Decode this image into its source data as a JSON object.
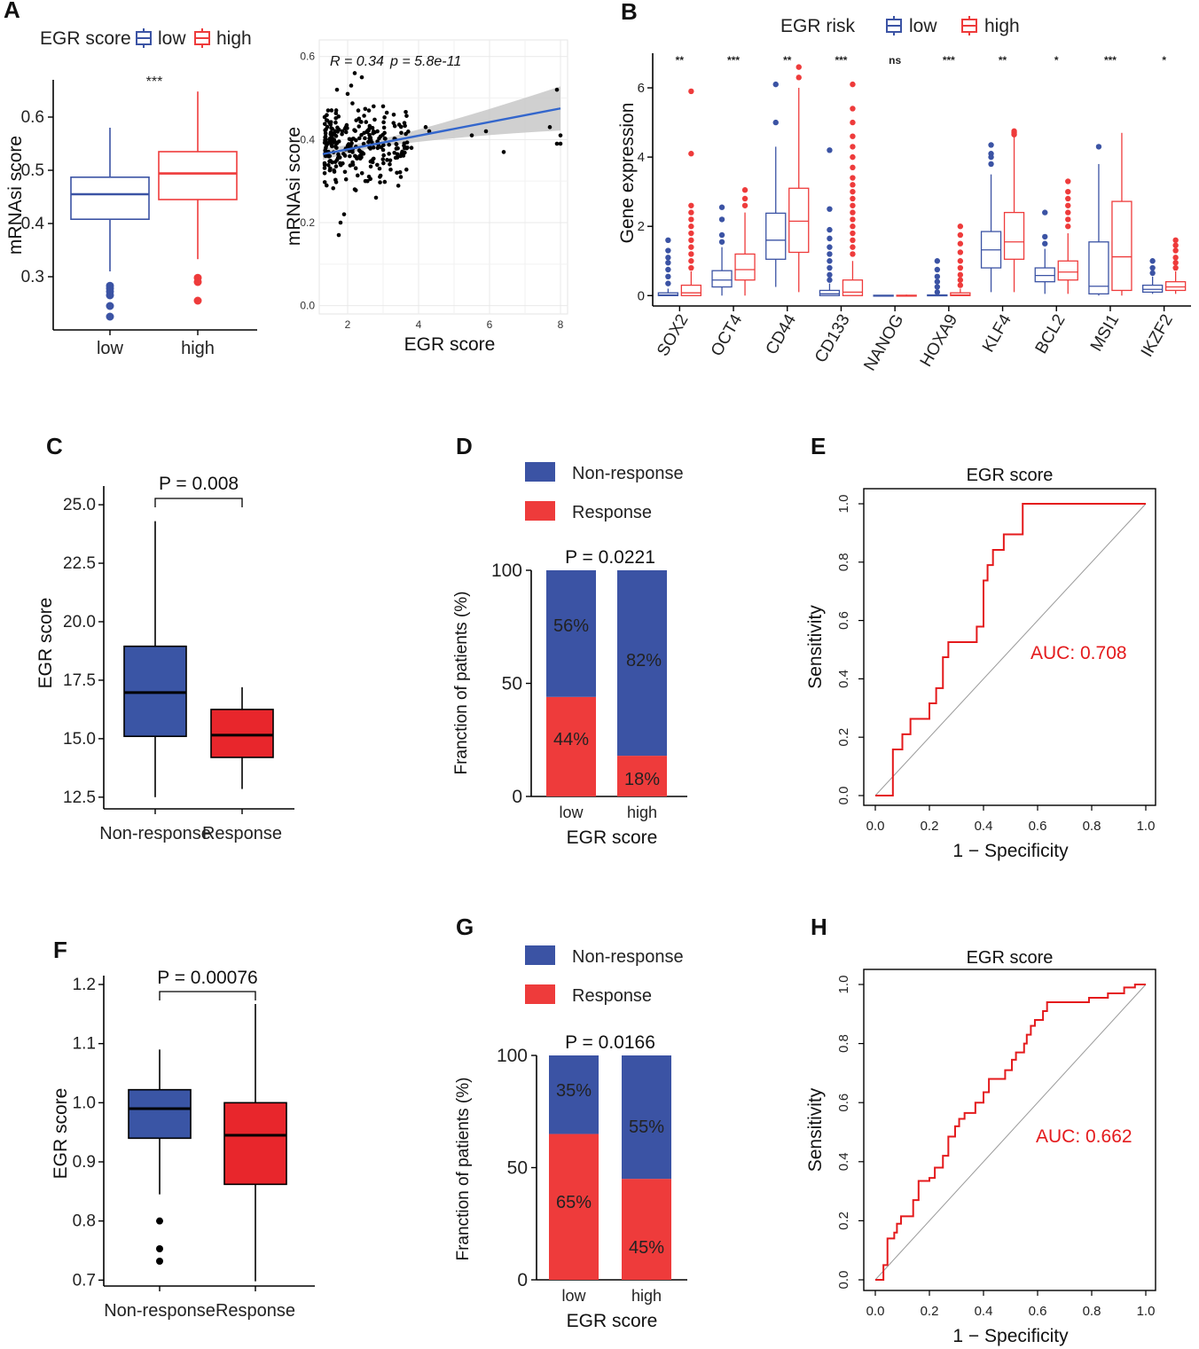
{
  "panel_labels": [
    "A",
    "B",
    "C",
    "D",
    "E",
    "F",
    "G",
    "H"
  ],
  "colors": {
    "blue": "#3b53a4",
    "red": "#ee3b3b",
    "box_blue": "#3a55a5",
    "box_red": "#e8262c",
    "dark_red": "#e41a1c"
  },
  "chart_data": [
    {
      "id": "A1",
      "type": "boxplot",
      "legend_title": "EGR score",
      "legend": [
        "low",
        "high"
      ],
      "categories": [
        "low",
        "high"
      ],
      "ylabel": "mRNAsi score",
      "xlabel": "",
      "ylim": [
        0.2,
        0.67
      ],
      "yticks": [
        0.3,
        0.4,
        0.5,
        0.6
      ],
      "significance": "***",
      "boxes": [
        {
          "name": "low",
          "whisker_low": 0.31,
          "q1": 0.408,
          "median": 0.455,
          "q3": 0.487,
          "whisker_high": 0.58,
          "outliers": [
            0.283,
            0.278,
            0.272,
            0.265,
            0.245,
            0.225
          ]
        },
        {
          "name": "high",
          "whisker_low": 0.333,
          "q1": 0.445,
          "median": 0.494,
          "q3": 0.535,
          "whisker_high": 0.648,
          "outliers": [
            0.298,
            0.29,
            0.255
          ]
        }
      ]
    },
    {
      "id": "A2",
      "type": "scatter",
      "annotation_r": "R = 0.34",
      "annotation_p": "p = 5.8e-11",
      "xlabel": "EGR score",
      "ylabel": "mRNAsi score",
      "xlim": [
        1.2,
        8.2
      ],
      "ylim": [
        -0.02,
        0.64
      ],
      "xticks": [
        2,
        4,
        6,
        8
      ],
      "yticks": [
        0.0,
        0.2,
        0.4,
        0.6
      ],
      "trend": {
        "x": [
          1.3,
          8.0
        ],
        "y": [
          0.365,
          0.475
        ]
      },
      "points_outlying": [
        [
          2.2,
          0.56
        ],
        [
          2.4,
          0.55
        ],
        [
          2.1,
          0.53
        ],
        [
          2.0,
          0.51
        ],
        [
          1.7,
          0.52
        ],
        [
          2.6,
          0.47
        ],
        [
          3.0,
          0.48
        ],
        [
          3.3,
          0.46
        ],
        [
          3.6,
          0.44
        ],
        [
          4.3,
          0.42
        ],
        [
          5.9,
          0.42
        ],
        [
          6.4,
          0.37
        ],
        [
          7.9,
          0.52
        ],
        [
          7.7,
          0.43
        ],
        [
          8.0,
          0.41
        ],
        [
          7.9,
          0.39
        ],
        [
          8.0,
          0.39
        ],
        [
          5.5,
          0.41
        ],
        [
          4.2,
          0.43
        ],
        [
          3.8,
          0.38
        ],
        [
          3.2,
          0.35
        ],
        [
          2.9,
          0.33
        ],
        [
          2.5,
          0.3
        ],
        [
          2.2,
          0.28
        ],
        [
          1.9,
          0.22
        ],
        [
          1.8,
          0.2
        ],
        [
          1.75,
          0.17
        ],
        [
          2.8,
          0.26
        ],
        [
          3.5,
          0.31
        ],
        [
          2.3,
          0.47
        ]
      ]
    },
    {
      "id": "B",
      "type": "grouped_boxplot",
      "legend_title": "EGR risk",
      "legend": [
        "low",
        "high"
      ],
      "ylabel": "Gene expression",
      "ylim": [
        -0.3,
        7.0
      ],
      "yticks": [
        0,
        2,
        4,
        6
      ],
      "categories": [
        "SOX2",
        "OCT4",
        "CD44",
        "CD133",
        "NANOG",
        "HOXA9",
        "KLF4",
        "BCL2",
        "MSI1",
        "IKZF2"
      ],
      "significance": [
        "**",
        "***",
        "**",
        "***",
        "ns",
        "***",
        "**",
        "*",
        "***",
        "*"
      ],
      "low": [
        {
          "wl": 0,
          "q1": 0.0,
          "med": 0.02,
          "q3": 0.08,
          "wh": 0.2,
          "out": [
            0.35,
            0.55,
            0.75,
            0.95,
            1.1,
            1.3,
            1.6
          ]
        },
        {
          "wl": 0,
          "q1": 0.25,
          "med": 0.45,
          "q3": 0.72,
          "wh": 1.4,
          "out": [
            1.55,
            1.75,
            2.2,
            2.55
          ]
        },
        {
          "wl": 0.25,
          "q1": 1.05,
          "med": 1.6,
          "q3": 2.38,
          "wh": 4.3,
          "out": [
            5.0,
            6.1
          ]
        },
        {
          "wl": 0,
          "q1": 0.0,
          "med": 0.05,
          "q3": 0.15,
          "wh": 0.35,
          "out": [
            0.45,
            0.6,
            0.8,
            1.0,
            1.2,
            1.4,
            1.65,
            1.9,
            2.5,
            4.2
          ]
        },
        {
          "wl": 0,
          "q1": 0.0,
          "med": 0.0,
          "q3": 0.01,
          "wh": 0.02,
          "out": []
        },
        {
          "wl": 0,
          "q1": 0.0,
          "med": 0.0,
          "q3": 0.02,
          "wh": 0.05,
          "out": [
            0.1,
            0.25,
            0.4,
            0.55,
            0.75,
            1.0
          ]
        },
        {
          "wl": 0.1,
          "q1": 0.8,
          "med": 1.32,
          "q3": 1.85,
          "wh": 3.5,
          "out": [
            3.8,
            4.0,
            4.1,
            4.35
          ]
        },
        {
          "wl": 0.05,
          "q1": 0.4,
          "med": 0.58,
          "q3": 0.8,
          "wh": 1.35,
          "out": [
            1.5,
            1.7,
            2.4
          ]
        },
        {
          "wl": 0,
          "q1": 0.05,
          "med": 0.27,
          "q3": 1.55,
          "wh": 3.8,
          "out": [
            4.3
          ]
        },
        {
          "wl": 0.05,
          "q1": 0.1,
          "med": 0.18,
          "q3": 0.3,
          "wh": 0.55,
          "out": [
            0.65,
            0.8,
            1.0
          ]
        }
      ],
      "high": [
        {
          "wl": 0,
          "q1": 0.0,
          "med": 0.08,
          "q3": 0.3,
          "wh": 0.7,
          "out": [
            0.8,
            1.0,
            1.2,
            1.4,
            1.6,
            1.8,
            2.0,
            2.2,
            2.4,
            2.6,
            4.1,
            5.9
          ]
        },
        {
          "wl": 0,
          "q1": 0.45,
          "med": 0.75,
          "q3": 1.2,
          "wh": 2.4,
          "out": [
            2.6,
            2.8,
            3.05
          ]
        },
        {
          "wl": 0.1,
          "q1": 1.25,
          "med": 2.15,
          "q3": 3.1,
          "wh": 6.0,
          "out": [
            6.3,
            6.6
          ]
        },
        {
          "wl": 0,
          "q1": 0.0,
          "med": 0.1,
          "q3": 0.45,
          "wh": 1.0,
          "out": [
            1.2,
            1.4,
            1.6,
            1.8,
            2.0,
            2.2,
            2.4,
            2.6,
            2.8,
            3.0,
            3.2,
            3.4,
            3.7,
            4.0,
            4.3,
            4.6,
            5.0,
            5.4,
            6.1
          ]
        },
        {
          "wl": 0,
          "q1": 0.0,
          "med": 0.0,
          "q3": 0.01,
          "wh": 0.03,
          "out": []
        },
        {
          "wl": 0,
          "q1": 0.0,
          "med": 0.02,
          "q3": 0.08,
          "wh": 0.2,
          "out": [
            0.3,
            0.45,
            0.6,
            0.8,
            1.0,
            1.25,
            1.5,
            1.75,
            2.0
          ]
        },
        {
          "wl": 0.1,
          "q1": 1.05,
          "med": 1.55,
          "q3": 2.4,
          "wh": 4.6,
          "out": [
            4.65,
            4.7,
            4.75
          ]
        },
        {
          "wl": 0.05,
          "q1": 0.45,
          "med": 0.68,
          "q3": 1.0,
          "wh": 1.8,
          "out": [
            2.0,
            2.2,
            2.4,
            2.6,
            2.8,
            3.0,
            3.3
          ]
        },
        {
          "wl": 0,
          "q1": 0.15,
          "med": 1.12,
          "q3": 2.72,
          "wh": 4.7,
          "out": []
        },
        {
          "wl": 0.05,
          "q1": 0.15,
          "med": 0.25,
          "q3": 0.4,
          "wh": 0.7,
          "out": [
            0.8,
            0.95,
            1.1,
            1.3,
            1.45,
            1.6
          ]
        }
      ]
    },
    {
      "id": "C",
      "type": "boxplot",
      "title": "P = 0.008",
      "categories": [
        "Non-response",
        "Response"
      ],
      "ylabel": "EGR score",
      "ylim": [
        12.0,
        25.8
      ],
      "yticks": [
        12.5,
        15.0,
        17.5,
        20.0,
        22.5,
        25.0
      ],
      "boxes": [
        {
          "name": "Non-response",
          "whisker_low": 12.5,
          "q1": 15.1,
          "median": 16.97,
          "q3": 18.95,
          "whisker_high": 24.3,
          "outliers": []
        },
        {
          "name": "Response",
          "whisker_low": 12.85,
          "q1": 14.2,
          "median": 15.15,
          "q3": 16.25,
          "whisker_high": 17.2,
          "outliers": []
        }
      ]
    },
    {
      "id": "D",
      "type": "stacked_bar",
      "legend": [
        "Non-response",
        "Response"
      ],
      "title": "P = 0.0221",
      "categories": [
        "low",
        "high"
      ],
      "xlabel": "EGR score",
      "ylabel": "Franction of patients (%)",
      "ylim": [
        0,
        100
      ],
      "yticks": [
        0,
        50,
        100
      ],
      "series": [
        {
          "name": "Response",
          "values": [
            44,
            18
          ]
        },
        {
          "name": "Non-response",
          "values": [
            56,
            82
          ]
        }
      ],
      "labels": {
        "Response": [
          "44%",
          "18%"
        ],
        "Non-response": [
          "56%",
          "82%"
        ]
      }
    },
    {
      "id": "E",
      "type": "roc",
      "title": "EGR score",
      "xlabel": "1 − Specificity",
      "ylabel": "Sensitivity",
      "xticks": [
        0.0,
        0.2,
        0.4,
        0.6,
        0.8,
        1.0
      ],
      "yticks": [
        0.0,
        0.2,
        0.4,
        0.6,
        0.8,
        1.0
      ],
      "tick_labels": [
        "0.0",
        "0.2",
        "0.4",
        "0.6",
        "0.8",
        "1.0"
      ],
      "auc_label": "AUC: 0.708",
      "curve": [
        [
          0,
          0
        ],
        [
          0.065,
          0
        ],
        [
          0.065,
          0.158
        ],
        [
          0.1,
          0.158
        ],
        [
          0.1,
          0.21
        ],
        [
          0.13,
          0.21
        ],
        [
          0.13,
          0.263
        ],
        [
          0.2,
          0.263
        ],
        [
          0.2,
          0.316
        ],
        [
          0.225,
          0.316
        ],
        [
          0.225,
          0.368
        ],
        [
          0.25,
          0.368
        ],
        [
          0.25,
          0.474
        ],
        [
          0.27,
          0.474
        ],
        [
          0.27,
          0.526
        ],
        [
          0.375,
          0.526
        ],
        [
          0.375,
          0.579
        ],
        [
          0.4,
          0.579
        ],
        [
          0.4,
          0.737
        ],
        [
          0.415,
          0.737
        ],
        [
          0.415,
          0.79
        ],
        [
          0.435,
          0.79
        ],
        [
          0.435,
          0.842
        ],
        [
          0.475,
          0.842
        ],
        [
          0.475,
          0.895
        ],
        [
          0.545,
          0.895
        ],
        [
          0.545,
          1.0
        ],
        [
          1.0,
          1.0
        ]
      ]
    },
    {
      "id": "F",
      "type": "boxplot",
      "title": "P = 0.00076",
      "categories": [
        "Non-response",
        "Response"
      ],
      "ylabel": "EGR score",
      "ylim": [
        0.69,
        1.215
      ],
      "yticks": [
        0.7,
        0.8,
        0.9,
        1.0,
        1.1,
        1.2
      ],
      "boxes": [
        {
          "name": "Non-response",
          "whisker_low": 0.845,
          "q1": 0.94,
          "median": 0.99,
          "q3": 1.022,
          "whisker_high": 1.09,
          "outliers": [
            0.8,
            0.753,
            0.732
          ]
        },
        {
          "name": "Response",
          "whisker_low": 0.698,
          "q1": 0.862,
          "median": 0.945,
          "q3": 1.0,
          "whisker_high": 1.167,
          "outliers": []
        }
      ]
    },
    {
      "id": "G",
      "type": "stacked_bar",
      "legend": [
        "Non-response",
        "Response"
      ],
      "title": "P = 0.0166",
      "categories": [
        "low",
        "high"
      ],
      "xlabel": "EGR score",
      "ylabel": "Franction of patients (%)",
      "ylim": [
        0,
        100
      ],
      "yticks": [
        0,
        50,
        100
      ],
      "series": [
        {
          "name": "Response",
          "values": [
            65,
            45
          ]
        },
        {
          "name": "Non-response",
          "values": [
            35,
            55
          ]
        }
      ],
      "labels": {
        "Response": [
          "65%",
          "45%"
        ],
        "Non-response": [
          "35%",
          "55%"
        ]
      }
    },
    {
      "id": "H",
      "type": "roc",
      "title": "EGR score",
      "xlabel": "1 − Specificity",
      "ylabel": "Sensitivity",
      "xticks": [
        0.0,
        0.2,
        0.4,
        0.6,
        0.8,
        1.0
      ],
      "yticks": [
        0.0,
        0.2,
        0.4,
        0.6,
        0.8,
        1.0
      ],
      "tick_labels": [
        "0.0",
        "0.2",
        "0.4",
        "0.6",
        "0.8",
        "1.0"
      ],
      "auc_label": "AUC: 0.662",
      "curve": [
        [
          0,
          0
        ],
        [
          0.03,
          0
        ],
        [
          0.03,
          0.05
        ],
        [
          0.045,
          0.05
        ],
        [
          0.045,
          0.14
        ],
        [
          0.07,
          0.14
        ],
        [
          0.07,
          0.16
        ],
        [
          0.08,
          0.16
        ],
        [
          0.08,
          0.19
        ],
        [
          0.095,
          0.19
        ],
        [
          0.095,
          0.215
        ],
        [
          0.14,
          0.215
        ],
        [
          0.14,
          0.27
        ],
        [
          0.16,
          0.27
        ],
        [
          0.16,
          0.335
        ],
        [
          0.2,
          0.335
        ],
        [
          0.2,
          0.345
        ],
        [
          0.22,
          0.345
        ],
        [
          0.22,
          0.38
        ],
        [
          0.25,
          0.38
        ],
        [
          0.25,
          0.42
        ],
        [
          0.27,
          0.42
        ],
        [
          0.27,
          0.485
        ],
        [
          0.295,
          0.485
        ],
        [
          0.295,
          0.52
        ],
        [
          0.31,
          0.52
        ],
        [
          0.31,
          0.545
        ],
        [
          0.33,
          0.545
        ],
        [
          0.33,
          0.565
        ],
        [
          0.37,
          0.565
        ],
        [
          0.37,
          0.6
        ],
        [
          0.4,
          0.6
        ],
        [
          0.4,
          0.635
        ],
        [
          0.42,
          0.635
        ],
        [
          0.42,
          0.68
        ],
        [
          0.48,
          0.68
        ],
        [
          0.48,
          0.71
        ],
        [
          0.505,
          0.71
        ],
        [
          0.505,
          0.745
        ],
        [
          0.52,
          0.745
        ],
        [
          0.52,
          0.77
        ],
        [
          0.55,
          0.77
        ],
        [
          0.55,
          0.8
        ],
        [
          0.56,
          0.8
        ],
        [
          0.56,
          0.83
        ],
        [
          0.575,
          0.83
        ],
        [
          0.575,
          0.86
        ],
        [
          0.59,
          0.86
        ],
        [
          0.59,
          0.88
        ],
        [
          0.62,
          0.88
        ],
        [
          0.62,
          0.91
        ],
        [
          0.635,
          0.91
        ],
        [
          0.635,
          0.94
        ],
        [
          0.79,
          0.94
        ],
        [
          0.79,
          0.955
        ],
        [
          0.86,
          0.955
        ],
        [
          0.86,
          0.97
        ],
        [
          0.92,
          0.97
        ],
        [
          0.92,
          0.99
        ],
        [
          0.96,
          0.99
        ],
        [
          0.96,
          1.0
        ],
        [
          1.0,
          1.0
        ]
      ]
    }
  ]
}
